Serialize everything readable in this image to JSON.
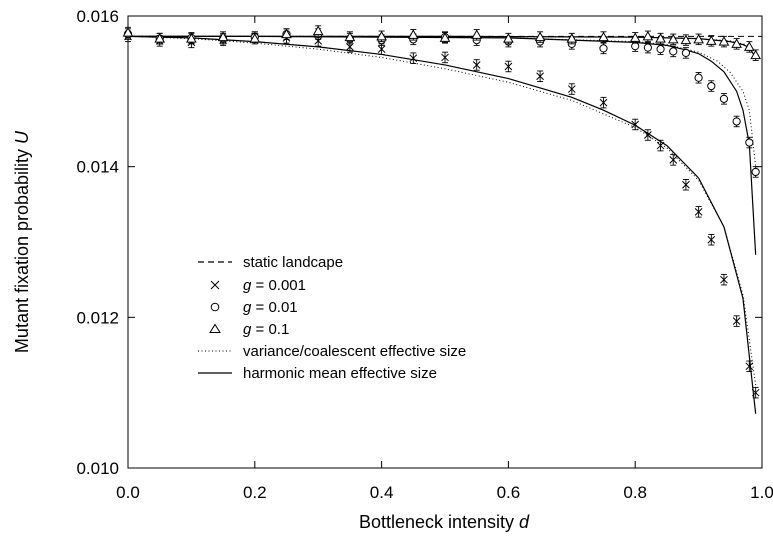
{
  "chart_data": {
    "type": "scatter",
    "xlabel": "Bottleneck intensity",
    "xlabel_var": "d",
    "ylabel": "Mutant fixation probability",
    "ylabel_var": "U",
    "xlim": [
      0.0,
      1.0
    ],
    "ylim": [
      0.01,
      0.016
    ],
    "x_ticks": [
      "0.0",
      "0.2",
      "0.4",
      "0.6",
      "0.8",
      "1.0"
    ],
    "y_ticks": [
      "0.010",
      "0.012",
      "0.014",
      "0.016"
    ],
    "grid": false,
    "legend_position": "center-left",
    "series": [
      {
        "name": "static landcape",
        "kind": "line",
        "style": "dashed",
        "x": [
          0.0,
          1.0
        ],
        "y": [
          0.01573,
          0.01573
        ]
      },
      {
        "name": "g = 0.001",
        "name_prefix": "g",
        "name_value": "= 0.001",
        "kind": "points",
        "marker": "cross",
        "x": [
          0.0,
          0.05,
          0.1,
          0.15,
          0.2,
          0.25,
          0.3,
          0.35,
          0.4,
          0.45,
          0.5,
          0.55,
          0.6,
          0.65,
          0.7,
          0.75,
          0.8,
          0.82,
          0.84,
          0.86,
          0.88,
          0.9,
          0.92,
          0.94,
          0.96,
          0.98,
          0.99
        ],
        "y": [
          0.01573,
          0.01567,
          0.01565,
          0.01568,
          0.01572,
          0.01571,
          0.01567,
          0.01559,
          0.01556,
          0.01544,
          0.01545,
          0.01535,
          0.01533,
          0.0152,
          0.01503,
          0.01485,
          0.01456,
          0.01442,
          0.01428,
          0.01409,
          0.01376,
          0.0134,
          0.01303,
          0.0125,
          0.01195,
          0.01135,
          0.011
        ],
        "err": [
          7e-05,
          7e-05,
          7e-05,
          7e-05,
          7e-05,
          7e-05,
          7e-05,
          7e-05,
          7e-05,
          7e-05,
          7e-05,
          7e-05,
          7e-05,
          7e-05,
          7e-05,
          7e-05,
          7e-05,
          7e-05,
          7e-05,
          7e-05,
          7e-05,
          7e-05,
          7e-05,
          7e-05,
          7e-05,
          7e-05,
          7e-05
        ]
      },
      {
        "name": "g = 0.01",
        "name_prefix": "g",
        "name_value": "= 0.01",
        "kind": "points",
        "marker": "circle",
        "x": [
          0.0,
          0.05,
          0.1,
          0.15,
          0.2,
          0.25,
          0.3,
          0.35,
          0.4,
          0.45,
          0.5,
          0.55,
          0.6,
          0.65,
          0.7,
          0.75,
          0.8,
          0.82,
          0.84,
          0.86,
          0.88,
          0.9,
          0.92,
          0.94,
          0.96,
          0.98,
          0.99
        ],
        "y": [
          0.01576,
          0.0157,
          0.01571,
          0.0157,
          0.01572,
          0.01576,
          0.01576,
          0.0157,
          0.01568,
          0.01569,
          0.01572,
          0.01568,
          0.01566,
          0.01566,
          0.01563,
          0.01557,
          0.0156,
          0.01558,
          0.01556,
          0.01553,
          0.01551,
          0.01518,
          0.01507,
          0.0149,
          0.0146,
          0.01432,
          0.01393
        ],
        "err": [
          7e-05,
          7e-05,
          7e-05,
          7e-05,
          7e-05,
          7e-05,
          7e-05,
          7e-05,
          7e-05,
          7e-05,
          7e-05,
          7e-05,
          7e-05,
          7e-05,
          7e-05,
          7e-05,
          7e-05,
          7e-05,
          7e-05,
          7e-05,
          7e-05,
          7e-05,
          7e-05,
          7e-05,
          7e-05,
          7e-05,
          7e-05
        ]
      },
      {
        "name": "g = 0.1",
        "name_prefix": "g",
        "name_value": "= 0.1",
        "kind": "points",
        "marker": "triangle",
        "x": [
          0.0,
          0.05,
          0.1,
          0.15,
          0.2,
          0.25,
          0.3,
          0.35,
          0.4,
          0.45,
          0.5,
          0.55,
          0.6,
          0.65,
          0.7,
          0.75,
          0.8,
          0.82,
          0.84,
          0.86,
          0.88,
          0.9,
          0.92,
          0.94,
          0.96,
          0.98,
          0.99
        ],
        "y": [
          0.01578,
          0.0157,
          0.0157,
          0.01572,
          0.0157,
          0.01576,
          0.0158,
          0.01572,
          0.01573,
          0.01575,
          0.01571,
          0.01575,
          0.0157,
          0.01572,
          0.0157,
          0.01572,
          0.01571,
          0.01573,
          0.0157,
          0.01569,
          0.01568,
          0.01569,
          0.01567,
          0.01566,
          0.01563,
          0.01559,
          0.01548
        ],
        "err": [
          7e-05,
          7e-05,
          7e-05,
          7e-05,
          7e-05,
          7e-05,
          7e-05,
          7e-05,
          7e-05,
          7e-05,
          7e-05,
          7e-05,
          7e-05,
          7e-05,
          7e-05,
          7e-05,
          7e-05,
          7e-05,
          7e-05,
          7e-05,
          7e-05,
          7e-05,
          7e-05,
          7e-05,
          7e-05,
          7e-05,
          7e-05
        ]
      },
      {
        "name": "variance/coalescent effective size",
        "kind": "line",
        "style": "dotted",
        "curves": [
          {
            "x": [
              0.0,
              0.1,
              0.2,
              0.3,
              0.4,
              0.5,
              0.6,
              0.7,
              0.8,
              0.85,
              0.9,
              0.94,
              0.97,
              0.99
            ],
            "y": [
              0.01573,
              0.0157,
              0.01564,
              0.01556,
              0.01545,
              0.0153,
              0.01512,
              0.01488,
              0.01452,
              0.01425,
              0.01382,
              0.0132,
              0.0123,
              0.0111
            ]
          },
          {
            "x": [
              0.0,
              0.2,
              0.4,
              0.6,
              0.8,
              0.85,
              0.9,
              0.93,
              0.95,
              0.97,
              0.98,
              0.99
            ],
            "y": [
              0.01573,
              0.01573,
              0.01572,
              0.01571,
              0.01566,
              0.01562,
              0.01552,
              0.0154,
              0.01525,
              0.015,
              0.01475,
              0.014
            ]
          },
          {
            "x": [
              0.0,
              0.5,
              0.8,
              0.9,
              0.95,
              0.98,
              0.99
            ],
            "y": [
              0.01573,
              0.01573,
              0.01572,
              0.0157,
              0.01567,
              0.01561,
              0.01553
            ]
          }
        ]
      },
      {
        "name": "harmonic mean effective size",
        "kind": "line",
        "style": "solid",
        "curves": [
          {
            "x": [
              0.0,
              0.1,
              0.2,
              0.3,
              0.4,
              0.5,
              0.6,
              0.7,
              0.75,
              0.8,
              0.85,
              0.9,
              0.94,
              0.97,
              0.99
            ],
            "y": [
              0.01573,
              0.01571,
              0.01566,
              0.01559,
              0.01549,
              0.01535,
              0.01517,
              0.01492,
              0.01475,
              0.01455,
              0.01428,
              0.01385,
              0.0132,
              0.01225,
              0.01072
            ]
          },
          {
            "x": [
              0.0,
              0.2,
              0.4,
              0.6,
              0.8,
              0.85,
              0.88,
              0.9,
              0.92,
              0.94,
              0.96,
              0.97,
              0.98,
              0.99
            ],
            "y": [
              0.01573,
              0.01573,
              0.01572,
              0.01571,
              0.01565,
              0.01561,
              0.01555,
              0.0155,
              0.0154,
              0.01526,
              0.015,
              0.01475,
              0.0143,
              0.01283
            ]
          },
          {
            "x": [
              0.0,
              0.5,
              0.8,
              0.9,
              0.95,
              0.97,
              0.98,
              0.99
            ],
            "y": [
              0.01573,
              0.01573,
              0.01572,
              0.0157,
              0.01566,
              0.01562,
              0.01558,
              0.01545
            ]
          }
        ]
      }
    ]
  }
}
